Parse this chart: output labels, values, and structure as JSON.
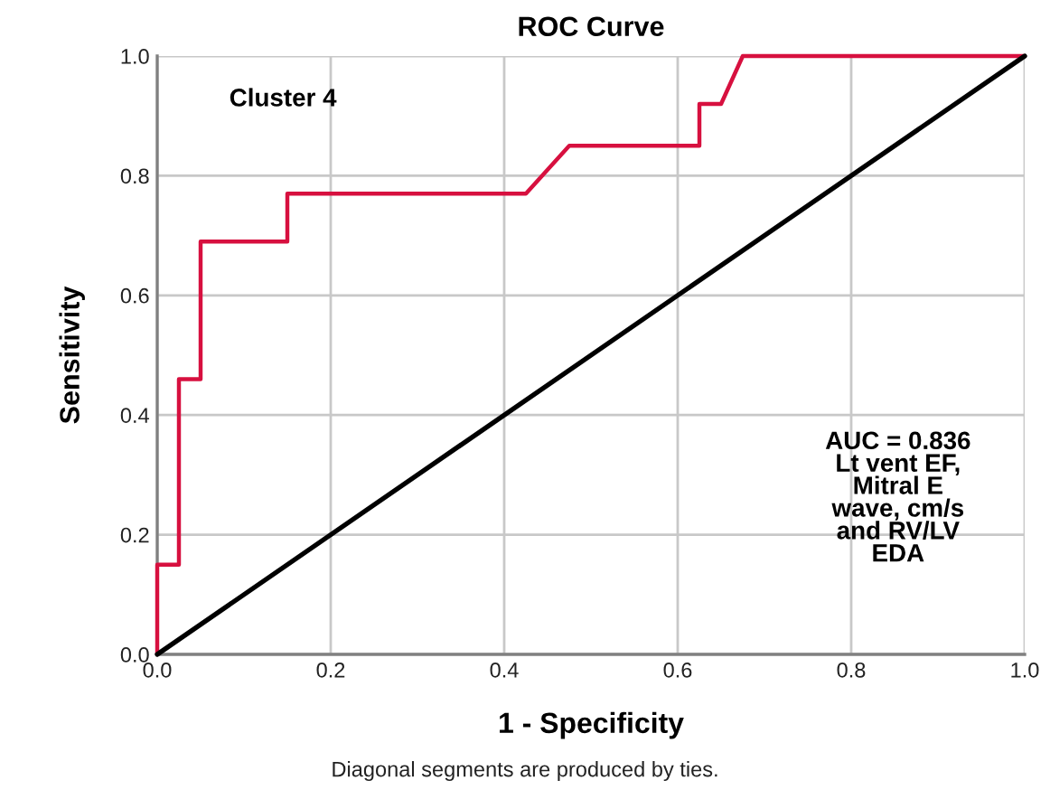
{
  "chart_data": {
    "type": "line",
    "title": "ROC Curve",
    "xlabel": "1 - Specificity",
    "ylabel": "Sensitivity",
    "annotations": [
      "Cluster 4",
      "AUC = 0.836\nLt vent EF,\nMitral E\nwave, cm/s\nand RV/LV\nEDA",
      "Diagonal segments are produced by ties."
    ],
    "series": [
      {
        "color": "#d7103f",
        "x": [
          0,
          0,
          0.025,
          0.025,
          0.05,
          0.05,
          0.15,
          0.15,
          0.425,
          0.475,
          0.625,
          0.625,
          0.65,
          0.675,
          1.0
        ],
        "values": [
          0,
          0.15,
          0.15,
          0.46,
          0.46,
          0.69,
          0.69,
          0.77,
          0.77,
          0.85,
          0.85,
          0.92,
          0.92,
          1.0,
          1.0
        ]
      },
      {
        "color": "#000000",
        "x": [
          0,
          1
        ],
        "values": [
          0,
          1
        ]
      }
    ],
    "xlim": [
      0,
      1
    ],
    "ylim": [
      0,
      1
    ],
    "xticks": [
      {
        "value": 0,
        "label": "0.0"
      },
      0.2,
      0.4,
      0.6,
      0.8,
      {
        "value": 1,
        "label": "1.0"
      }
    ],
    "yticks": [
      {
        "value": 0,
        "label": "0.0"
      },
      0.2,
      0.4,
      0.6,
      0.8,
      {
        "value": 1,
        "label": "1.0"
      }
    ],
    "grid": true,
    "marker": "none",
    "line_style": "solid"
  }
}
